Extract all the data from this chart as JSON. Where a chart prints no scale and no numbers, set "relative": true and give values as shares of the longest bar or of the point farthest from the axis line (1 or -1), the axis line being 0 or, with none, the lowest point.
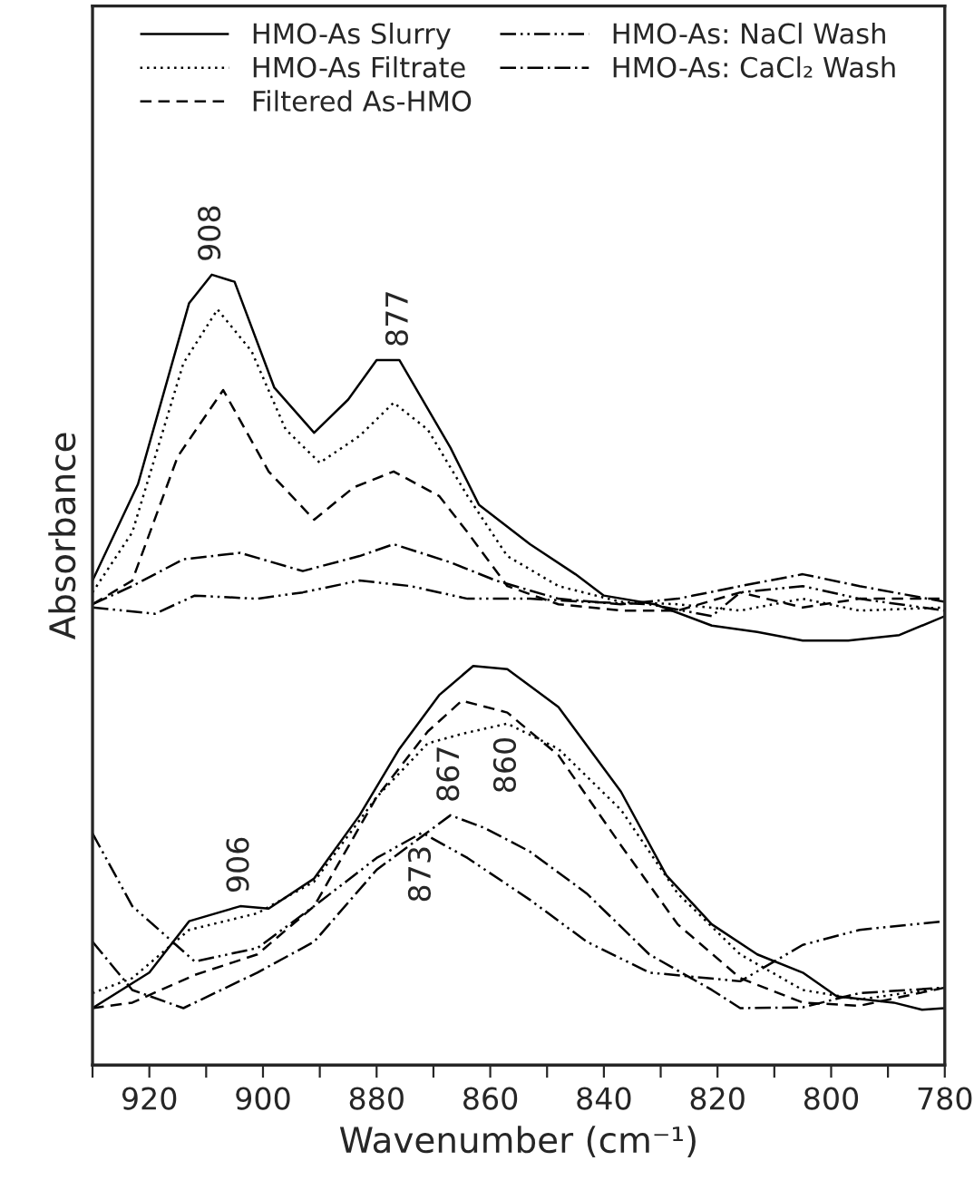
{
  "chart_data": {
    "type": "line",
    "relative": true,
    "xlabel": "Wavenumber (cm⁻¹)",
    "ylabel": "Absorbance",
    "xlim": [
      930,
      780
    ],
    "xticks": [
      {
        "value": 930,
        "label": null
      },
      920,
      {
        "value": 910,
        "label": null
      },
      900,
      {
        "value": 890,
        "label": null
      },
      880,
      {
        "value": 870,
        "label": null
      },
      860,
      {
        "value": 850,
        "label": null
      },
      840,
      {
        "value": 830,
        "label": null
      },
      820,
      {
        "value": 810,
        "label": null
      },
      800,
      {
        "value": 790,
        "label": null
      },
      780
    ],
    "grid": false,
    "legend": "top",
    "marker": "none",
    "series": [
      {
        "name": "HMO-As Slurry",
        "color": "#000000",
        "line_style": "solid",
        "x": [
          930,
          922,
          913,
          909,
          905,
          898,
          891,
          885,
          880,
          876,
          867,
          862,
          853,
          845,
          840,
          831,
          821,
          813,
          805,
          797,
          788,
          780
        ],
        "values": [
          0.613,
          0.735,
          0.964,
          1.0,
          0.991,
          0.857,
          0.8,
          0.842,
          0.892,
          0.892,
          0.781,
          0.709,
          0.659,
          0.621,
          0.594,
          0.583,
          0.556,
          0.548,
          0.537,
          0.537,
          0.544,
          0.568
        ]
      },
      {
        "name": "HMO-As Filtrate",
        "color": "#000000",
        "line_style": "dotted",
        "x": [
          930,
          923,
          914,
          908,
          902,
          896,
          890,
          883,
          877,
          871,
          864,
          857,
          848,
          837,
          827,
          816,
          805,
          795,
          780
        ],
        "values": [
          0.598,
          0.674,
          0.888,
          0.956,
          0.903,
          0.804,
          0.762,
          0.796,
          0.838,
          0.804,
          0.72,
          0.644,
          0.606,
          0.586,
          0.583,
          0.575,
          0.59,
          0.575,
          0.579
        ]
      },
      {
        "name": "Filtered As-HMO",
        "color": "#000000",
        "line_style": "dashed",
        "x": [
          930,
          923,
          915,
          907,
          899,
          891,
          884,
          877,
          869,
          864,
          857,
          848,
          837,
          827,
          816,
          805,
          795,
          780
        ],
        "values": [
          0.583,
          0.613,
          0.77,
          0.854,
          0.751,
          0.69,
          0.731,
          0.751,
          0.72,
          0.674,
          0.606,
          0.583,
          0.575,
          0.575,
          0.598,
          0.579,
          0.59,
          0.59
        ]
      },
      {
        "name": "HMO-As: NaCl Wash",
        "color": "#000000",
        "line_style": "dashdotdot",
        "x": [
          930,
          919,
          912,
          901,
          893,
          883,
          874,
          864,
          853,
          843,
          832,
          821,
          816,
          805,
          795,
          780
        ],
        "values": [
          0.579,
          0.571,
          0.594,
          0.59,
          0.598,
          0.613,
          0.606,
          0.59,
          0.59,
          0.586,
          0.583,
          0.568,
          0.598,
          0.606,
          0.59,
          0.575
        ]
      },
      {
        "name": "HMO-As: CaCl₂ Wash",
        "color": "#000000",
        "line_style": "dashdot",
        "x": [
          930,
          923,
          914,
          904,
          893,
          883,
          877,
          867,
          859,
          848,
          837,
          827,
          816,
          805,
          795,
          780
        ],
        "values": [
          0.583,
          0.606,
          0.64,
          0.648,
          0.625,
          0.644,
          0.659,
          0.636,
          0.613,
          0.59,
          0.583,
          0.59,
          0.606,
          0.621,
          0.606,
          0.586
        ]
      },
      {
        "color": "#000000",
        "line_style": "solid",
        "x": [
          930,
          920,
          913,
          904,
          899,
          891,
          883,
          876,
          869,
          863,
          857,
          848,
          837,
          829,
          821,
          813,
          805,
          799,
          789,
          784,
          780
        ],
        "values": [
          0.072,
          0.117,
          0.182,
          0.201,
          0.198,
          0.236,
          0.316,
          0.4,
          0.468,
          0.505,
          0.501,
          0.453,
          0.346,
          0.24,
          0.178,
          0.14,
          0.117,
          0.087,
          0.079,
          0.07,
          0.072
        ]
      },
      {
        "color": "#000000",
        "line_style": "dotted",
        "x": [
          930,
          923,
          913,
          901,
          891,
          880,
          871,
          865,
          857,
          848,
          837,
          827,
          816,
          805,
          795,
          780
        ],
        "values": [
          0.091,
          0.11,
          0.171,
          0.192,
          0.232,
          0.339,
          0.407,
          0.419,
          0.432,
          0.4,
          0.323,
          0.217,
          0.14,
          0.095,
          0.083,
          0.098
        ]
      },
      {
        "color": "#000000",
        "line_style": "dashed",
        "x": [
          930,
          923,
          912,
          901,
          891,
          880,
          871,
          865,
          857,
          848,
          837,
          827,
          816,
          805,
          795,
          780
        ],
        "values": [
          0.072,
          0.079,
          0.114,
          0.14,
          0.201,
          0.339,
          0.422,
          0.461,
          0.446,
          0.392,
          0.278,
          0.178,
          0.11,
          0.079,
          0.075,
          0.098
        ]
      },
      {
        "color": "#000000",
        "line_style": "dashdotdot",
        "x": [
          930,
          923,
          912,
          901,
          891,
          880,
          872,
          864,
          853,
          843,
          832,
          816,
          805,
          795,
          780
        ],
        "values": [
          0.293,
          0.201,
          0.131,
          0.148,
          0.201,
          0.262,
          0.294,
          0.262,
          0.209,
          0.156,
          0.117,
          0.106,
          0.152,
          0.171,
          0.182
        ]
      },
      {
        "color": "#000000",
        "line_style": "dashdot",
        "x": [
          930,
          923,
          914,
          901,
          891,
          880,
          867,
          861,
          853,
          843,
          832,
          821,
          816,
          805,
          795,
          780
        ],
        "values": [
          0.156,
          0.095,
          0.072,
          0.117,
          0.156,
          0.247,
          0.316,
          0.3,
          0.27,
          0.217,
          0.14,
          0.095,
          0.072,
          0.073,
          0.091,
          0.098
        ]
      }
    ],
    "annotations": [
      {
        "text": "908",
        "x": 909,
        "y": 1.0
      },
      {
        "text": "877",
        "x": 876,
        "y": 0.892
      },
      {
        "text": "906",
        "x": 904,
        "y": 0.201
      },
      {
        "text": "867",
        "x": 867,
        "y": 0.316
      },
      {
        "text": "860",
        "x": 857,
        "y": 0.432
      },
      {
        "text": "873",
        "x": 872,
        "y": 0.294
      }
    ]
  }
}
